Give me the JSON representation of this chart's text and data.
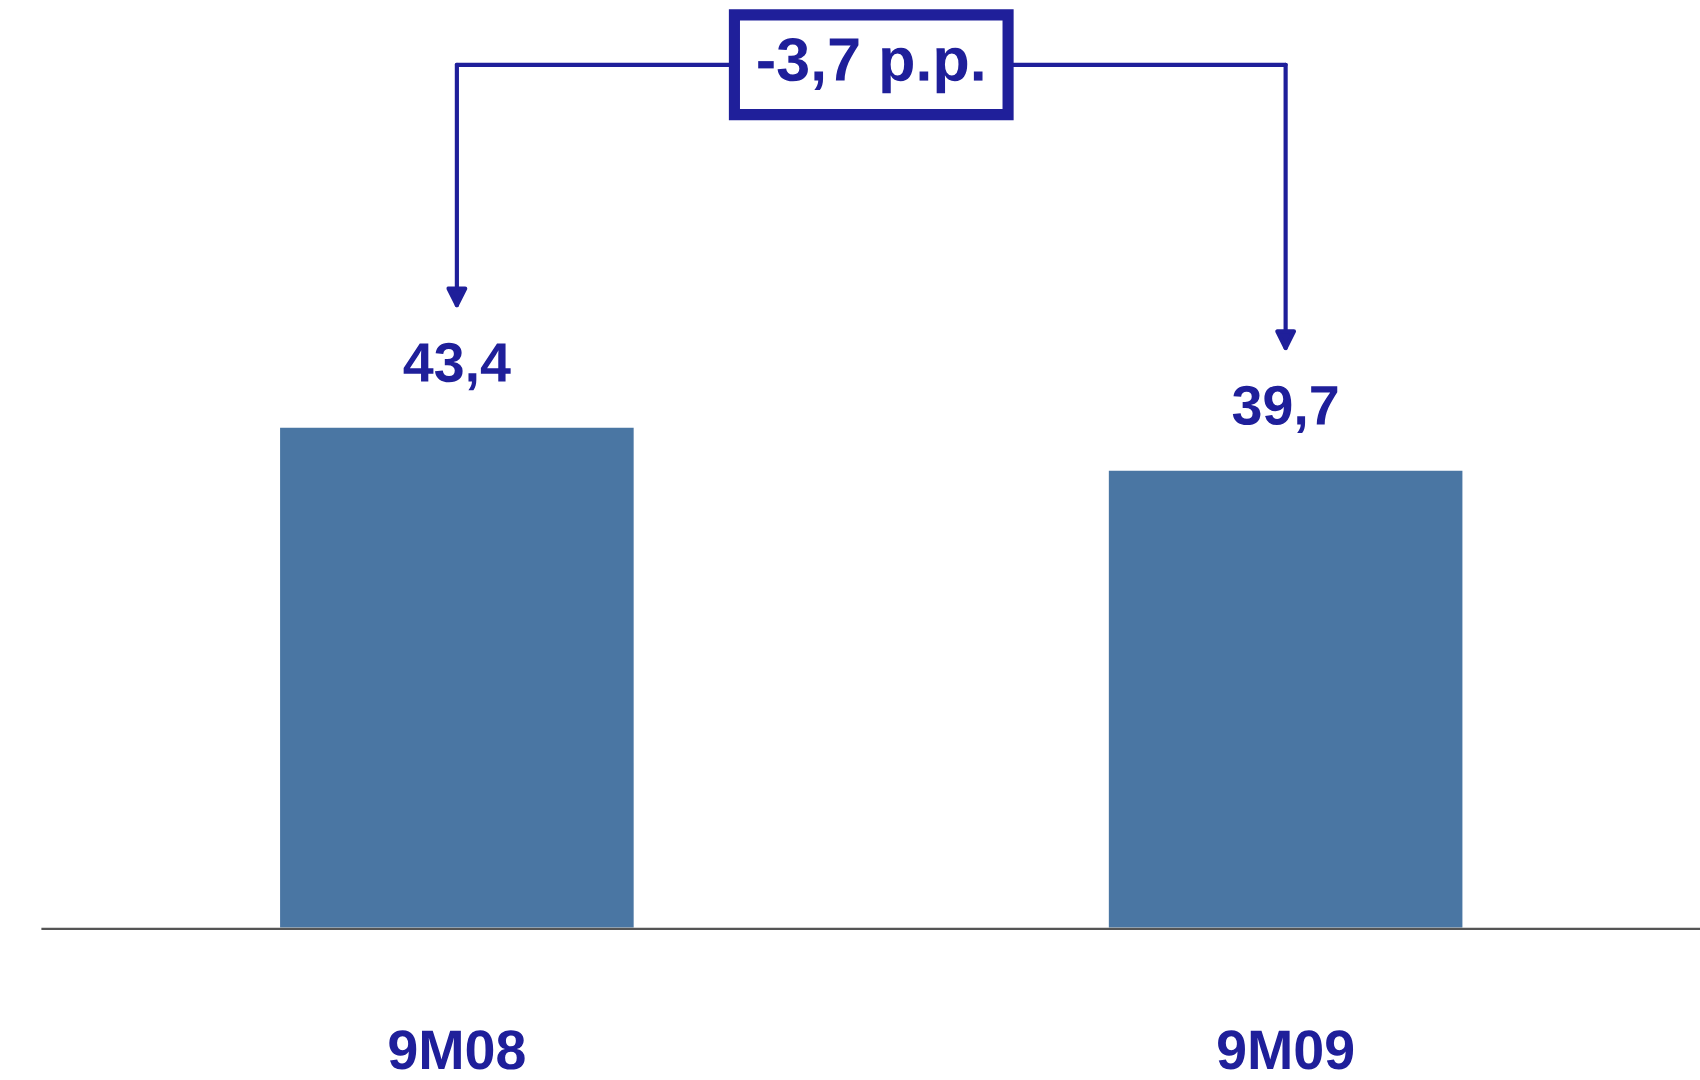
{
  "chart_data": {
    "type": "bar",
    "categories": [
      "9M08",
      "9M09"
    ],
    "values": [
      43.4,
      39.7
    ],
    "value_labels": [
      "43,4",
      "39,7"
    ],
    "color": "#4a76a3",
    "annotations": [
      "-3,7 p.p."
    ],
    "grid": false,
    "legend": false,
    "tick_labels": "x"
  }
}
